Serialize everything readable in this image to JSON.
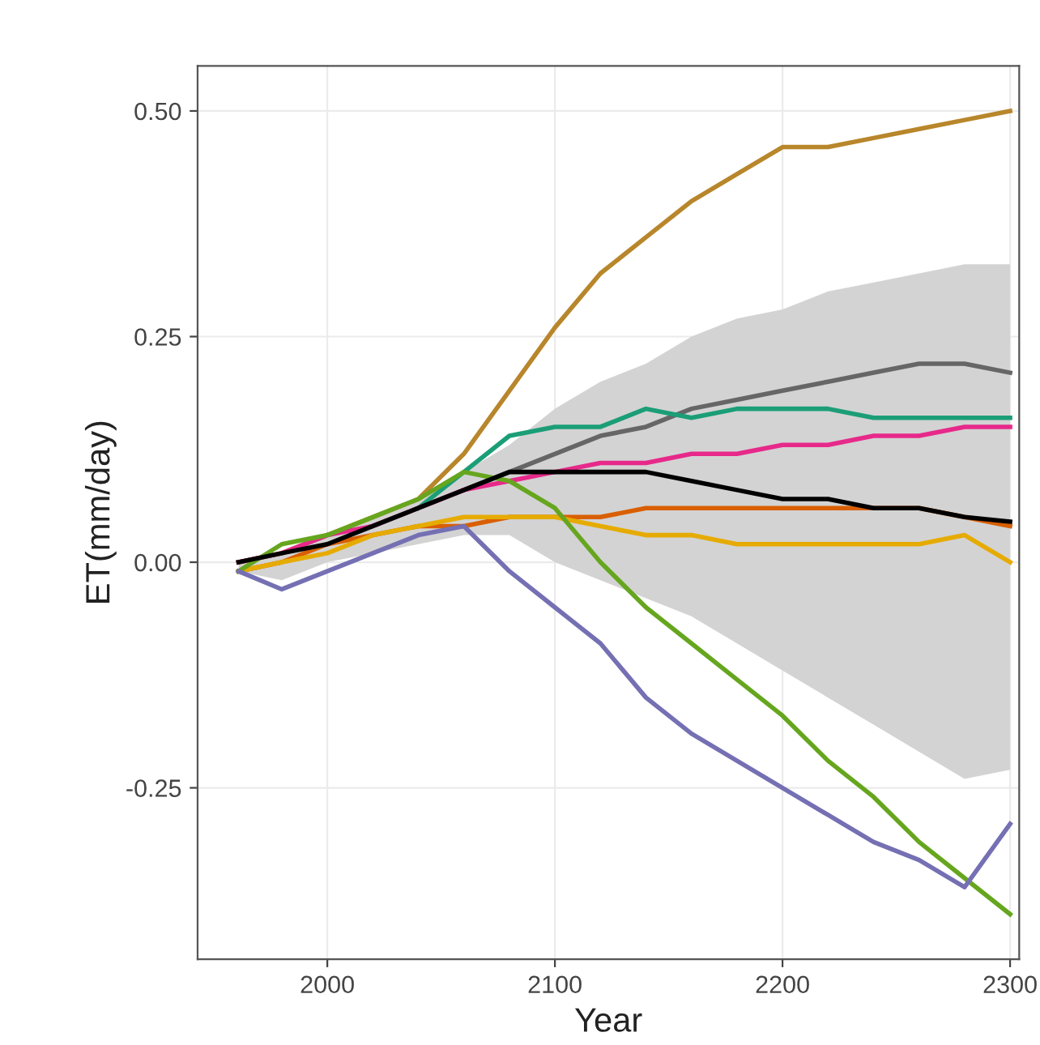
{
  "chart_data": {
    "type": "line",
    "xlabel": "Year",
    "ylabel": "ET(mm/day)",
    "x": [
      1961,
      1980,
      2000,
      2020,
      2040,
      2060,
      2080,
      2100,
      2120,
      2140,
      2160,
      2180,
      2200,
      2220,
      2240,
      2260,
      2280,
      2300
    ],
    "xlim": [
      1943,
      2304
    ],
    "xticks": [
      2000,
      2100,
      2200,
      2300
    ],
    "ylim": [
      -0.44,
      0.55
    ],
    "yticks": [
      {
        "value": -0.25,
        "label": "-0.25"
      },
      {
        "value": 0,
        "label": "0.00"
      },
      {
        "value": 0.25,
        "label": "0.25"
      },
      {
        "value": 0.5,
        "label": "0.50"
      }
    ],
    "grid": true,
    "line_style": "solid",
    "marker": "none",
    "series": [
      {
        "color": "#b8862b",
        "values": [
          0,
          0.01,
          0.03,
          0.05,
          0.07,
          0.12,
          0.19,
          0.26,
          0.32,
          0.36,
          0.4,
          0.43,
          0.46,
          0.46,
          0.47,
          0.48,
          0.49,
          0.5
        ]
      },
      {
        "color": "#666666",
        "values": [
          null,
          null,
          null,
          null,
          null,
          0.08,
          0.1,
          0.12,
          0.14,
          0.15,
          0.17,
          0.18,
          0.19,
          0.2,
          0.21,
          0.22,
          0.22,
          0.21
        ]
      },
      {
        "color": "#1b9e77",
        "values": [
          null,
          null,
          null,
          null,
          0.06,
          0.1,
          0.14,
          0.15,
          0.15,
          0.17,
          0.16,
          0.17,
          0.17,
          0.17,
          0.16,
          0.16,
          0.16,
          0.16
        ]
      },
      {
        "color": "#e7298a",
        "values": [
          0,
          0.01,
          0.03,
          0.04,
          0.06,
          0.08,
          0.09,
          0.1,
          0.11,
          0.11,
          0.12,
          0.12,
          0.13,
          0.13,
          0.14,
          0.14,
          0.15,
          0.15
        ]
      },
      {
        "color": "#d95f02",
        "values": [
          -0.01,
          0,
          0.02,
          0.03,
          0.04,
          0.04,
          0.05,
          0.05,
          0.05,
          0.06,
          0.06,
          0.06,
          0.06,
          0.06,
          0.06,
          0.06,
          0.05,
          0.04
        ]
      },
      {
        "color": "#e6ab02",
        "values": [
          -0.01,
          0,
          0.01,
          0.03,
          0.04,
          0.05,
          0.05,
          0.05,
          0.04,
          0.03,
          0.03,
          0.02,
          0.02,
          0.02,
          0.02,
          0.02,
          0.03,
          0.0
        ]
      },
      {
        "color": "#66a61e",
        "values": [
          -0.01,
          0.02,
          0.03,
          0.05,
          0.07,
          0.1,
          0.09,
          0.06,
          0.0,
          -0.05,
          -0.09,
          -0.13,
          -0.17,
          -0.22,
          -0.26,
          -0.31,
          -0.35,
          -0.39
        ]
      },
      {
        "color": "#7570b3",
        "values": [
          -0.01,
          -0.03,
          -0.01,
          0.01,
          0.03,
          0.04,
          -0.01,
          -0.05,
          -0.09,
          -0.15,
          -0.19,
          -0.22,
          -0.25,
          -0.28,
          -0.31,
          -0.33,
          -0.36,
          -0.29
        ]
      },
      {
        "color": "#000000",
        "values": [
          0,
          0.01,
          0.02,
          0.04,
          0.06,
          0.08,
          0.1,
          0.1,
          0.1,
          0.1,
          0.09,
          0.08,
          0.07,
          0.07,
          0.06,
          0.06,
          0.05,
          0.045
        ],
        "lower": [
          -0.01,
          -0.02,
          0,
          0.01,
          0.02,
          0.03,
          0.03,
          0.0,
          -0.02,
          -0.04,
          -0.06,
          -0.09,
          -0.12,
          -0.15,
          -0.18,
          -0.21,
          -0.24,
          -0.23
        ],
        "upper": [
          0,
          0.01,
          0.03,
          0.05,
          0.07,
          0.1,
          0.13,
          0.17,
          0.2,
          0.22,
          0.25,
          0.27,
          0.28,
          0.3,
          0.31,
          0.32,
          0.33,
          0.33
        ]
      }
    ]
  }
}
